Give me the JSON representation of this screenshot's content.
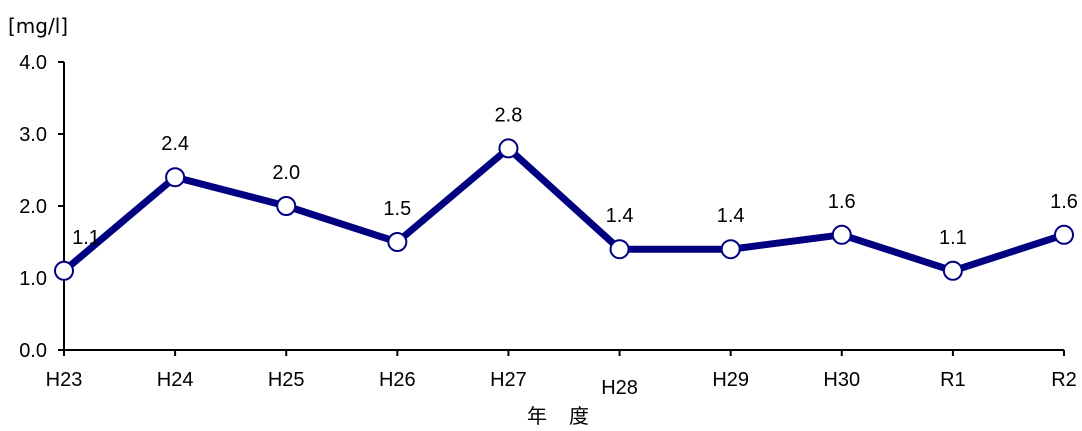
{
  "chart_data": {
    "type": "line",
    "title": "",
    "ylabel": "[mg/l]",
    "xlabel": "年度",
    "categories": [
      "H23",
      "H24",
      "H25",
      "H26",
      "H27",
      "H28",
      "H29",
      "H30",
      "R1",
      "R2"
    ],
    "series": [
      {
        "values": [
          1.1,
          2.4,
          2.0,
          1.5,
          2.8,
          1.4,
          1.4,
          1.6,
          1.1,
          1.6
        ],
        "labels": [
          "1.1",
          "2.4",
          "2.0",
          "1.5",
          "2.8",
          "1.4",
          "1.4",
          "1.6",
          "1.1",
          "1.6"
        ],
        "color": "#000080"
      }
    ],
    "ylim": [
      0,
      4.0
    ],
    "yticks": [
      "0.0",
      "1.0",
      "2.0",
      "3.0",
      "4.0"
    ],
    "grid": false,
    "legend": "none"
  }
}
